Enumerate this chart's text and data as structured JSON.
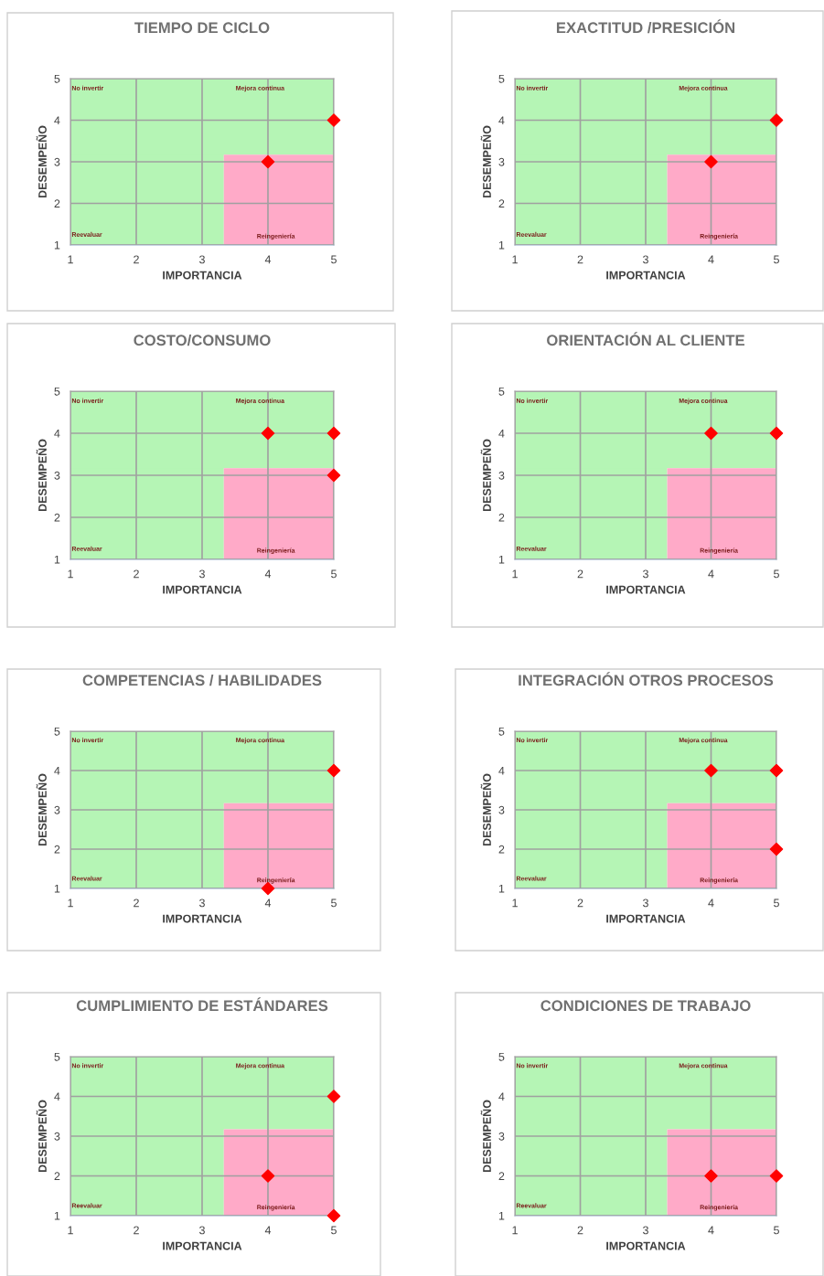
{
  "chart_data": [
    {
      "type": "scatter",
      "title": "TIEMPO DE CICLO",
      "xlabel": "IMPORTANCIA",
      "ylabel": "DESEMPEÑO",
      "xlim": [
        1,
        5
      ],
      "ylim": [
        1,
        5
      ],
      "xticks": [
        1,
        2,
        3,
        4,
        5
      ],
      "yticks": [
        1,
        2,
        3,
        4,
        5
      ],
      "grid": true,
      "bands": [
        {
          "axis": "x",
          "from": 1,
          "to": 3.33,
          "color": "#b5f5b5"
        },
        {
          "axis": "y",
          "from": 3.17,
          "to": 5,
          "color": "#b5f5b5"
        }
      ],
      "annotations": [
        "No invertir",
        "Mejora continua",
        "Reevaluar",
        "Reingeniería"
      ],
      "series": [
        {
          "type": "area",
          "x": [
            3.33,
            5
          ],
          "values": [
            3.17,
            3.17
          ],
          "color": "#ffaac8"
        },
        {
          "marker": "diamond",
          "x": [
            5,
            4
          ],
          "values": [
            4,
            3
          ],
          "color": "#ff0000"
        }
      ]
    },
    {
      "type": "scatter",
      "title": "EXACTITUD /PRESICIÓN",
      "xlabel": "IMPORTANCIA",
      "ylabel": "DESEMPEÑO",
      "xlim": [
        1,
        5
      ],
      "ylim": [
        1,
        5
      ],
      "xticks": [
        1,
        2,
        3,
        4,
        5
      ],
      "yticks": [
        1,
        2,
        3,
        4,
        5
      ],
      "grid": true,
      "bands": [
        {
          "axis": "x",
          "from": 1,
          "to": 3.33,
          "color": "#b5f5b5"
        },
        {
          "axis": "y",
          "from": 3.17,
          "to": 5,
          "color": "#b5f5b5"
        }
      ],
      "annotations": [
        "No invertir",
        "Mejora continua",
        "Reevaluar",
        "Reingeniería"
      ],
      "series": [
        {
          "type": "area",
          "x": [
            3.33,
            5
          ],
          "values": [
            3.17,
            3.17
          ],
          "color": "#ffaac8"
        },
        {
          "marker": "diamond",
          "x": [
            5,
            4
          ],
          "values": [
            4,
            3
          ],
          "color": "#ff0000"
        }
      ]
    },
    {
      "type": "scatter",
      "title": "COSTO/CONSUMO",
      "xlabel": "IMPORTANCIA",
      "ylabel": "DESEMPEÑO",
      "xlim": [
        1,
        5
      ],
      "ylim": [
        1,
        5
      ],
      "xticks": [
        1,
        2,
        3,
        4,
        5
      ],
      "yticks": [
        1,
        2,
        3,
        4,
        5
      ],
      "grid": true,
      "bands": [
        {
          "axis": "x",
          "from": 1,
          "to": 3.33,
          "color": "#b5f5b5"
        },
        {
          "axis": "y",
          "from": 3.17,
          "to": 5,
          "color": "#b5f5b5"
        }
      ],
      "annotations": [
        "No invertir",
        "Mejora continua",
        "Reevaluar",
        "Reingeniería"
      ],
      "series": [
        {
          "type": "area",
          "x": [
            3.33,
            5
          ],
          "values": [
            3.17,
            3.17
          ],
          "color": "#ffaac8"
        },
        {
          "marker": "diamond",
          "x": [
            4,
            5,
            5
          ],
          "values": [
            4,
            4,
            3
          ],
          "color": "#ff0000"
        }
      ]
    },
    {
      "type": "scatter",
      "title": "ORIENTACIÓN AL CLIENTE",
      "xlabel": "IMPORTANCIA",
      "ylabel": "DESEMPEÑO",
      "xlim": [
        1,
        5
      ],
      "ylim": [
        1,
        5
      ],
      "xticks": [
        1,
        2,
        3,
        4,
        5
      ],
      "yticks": [
        1,
        2,
        3,
        4,
        5
      ],
      "grid": true,
      "bands": [
        {
          "axis": "x",
          "from": 1,
          "to": 3.33,
          "color": "#b5f5b5"
        },
        {
          "axis": "y",
          "from": 3.17,
          "to": 5,
          "color": "#b5f5b5"
        }
      ],
      "annotations": [
        "No invertir",
        "Mejora continua",
        "Reevaluar",
        "Reingeniería"
      ],
      "series": [
        {
          "type": "area",
          "x": [
            3.33,
            5
          ],
          "values": [
            3.17,
            3.17
          ],
          "color": "#ffaac8"
        },
        {
          "marker": "diamond",
          "x": [
            4,
            5
          ],
          "values": [
            4,
            4
          ],
          "color": "#ff0000"
        }
      ]
    },
    {
      "type": "scatter",
      "title": "COMPETENCIAS / HABILIDADES",
      "xlabel": "IMPORTANCIA",
      "ylabel": "DESEMPEÑO",
      "xlim": [
        1,
        5
      ],
      "ylim": [
        1,
        5
      ],
      "xticks": [
        1,
        2,
        3,
        4,
        5
      ],
      "yticks": [
        1,
        2,
        3,
        4,
        5
      ],
      "grid": true,
      "bands": [
        {
          "axis": "x",
          "from": 1,
          "to": 3.33,
          "color": "#b5f5b5"
        },
        {
          "axis": "y",
          "from": 3.17,
          "to": 5,
          "color": "#b5f5b5"
        }
      ],
      "annotations": [
        "No invertir",
        "Mejora continua",
        "Reevaluar",
        "Reingeniería"
      ],
      "series": [
        {
          "type": "area",
          "x": [
            3.33,
            5
          ],
          "values": [
            3.17,
            3.17
          ],
          "color": "#ffaac8"
        },
        {
          "marker": "diamond",
          "x": [
            5,
            4
          ],
          "values": [
            4,
            1
          ],
          "color": "#ff0000"
        }
      ]
    },
    {
      "type": "scatter",
      "title": "INTEGRACIÓN OTROS PROCESOS",
      "xlabel": "IMPORTANCIA",
      "ylabel": "DESEMPEÑO",
      "xlim": [
        1,
        5
      ],
      "ylim": [
        1,
        5
      ],
      "xticks": [
        1,
        2,
        3,
        4,
        5
      ],
      "yticks": [
        1,
        2,
        3,
        4,
        5
      ],
      "grid": true,
      "bands": [
        {
          "axis": "x",
          "from": 1,
          "to": 3.33,
          "color": "#b5f5b5"
        },
        {
          "axis": "y",
          "from": 3.17,
          "to": 5,
          "color": "#b5f5b5"
        }
      ],
      "annotations": [
        "No invertir",
        "Mejora continua",
        "Reevaluar",
        "Reingeniería"
      ],
      "series": [
        {
          "type": "area",
          "x": [
            3.33,
            5
          ],
          "values": [
            3.17,
            3.17
          ],
          "color": "#ffaac8"
        },
        {
          "marker": "diamond",
          "x": [
            4,
            5,
            5
          ],
          "values": [
            4,
            4,
            2
          ],
          "color": "#ff0000"
        }
      ]
    },
    {
      "type": "scatter",
      "title": "CUMPLIMIENTO DE ESTÁNDARES",
      "xlabel": "IMPORTANCIA",
      "ylabel": "DESEMPEÑO",
      "xlim": [
        1,
        5
      ],
      "ylim": [
        1,
        5
      ],
      "xticks": [
        1,
        2,
        3,
        4,
        5
      ],
      "yticks": [
        1,
        2,
        3,
        4,
        5
      ],
      "grid": true,
      "bands": [
        {
          "axis": "x",
          "from": 1,
          "to": 3.33,
          "color": "#b5f5b5"
        },
        {
          "axis": "y",
          "from": 3.17,
          "to": 5,
          "color": "#b5f5b5"
        }
      ],
      "annotations": [
        "No invertir",
        "Mejora continua",
        "Reevaluar",
        "Reingeniería"
      ],
      "series": [
        {
          "type": "area",
          "x": [
            3.33,
            5
          ],
          "values": [
            3.17,
            3.17
          ],
          "color": "#ffaac8"
        },
        {
          "marker": "diamond",
          "x": [
            5,
            4,
            5
          ],
          "values": [
            4,
            2,
            1
          ],
          "color": "#ff0000"
        }
      ]
    },
    {
      "type": "scatter",
      "title": "CONDICIONES DE TRABAJO",
      "xlabel": "IMPORTANCIA",
      "ylabel": "DESEMPEÑO",
      "xlim": [
        1,
        5
      ],
      "ylim": [
        1,
        5
      ],
      "xticks": [
        1,
        2,
        3,
        4,
        5
      ],
      "yticks": [
        1,
        2,
        3,
        4,
        5
      ],
      "grid": true,
      "bands": [
        {
          "axis": "x",
          "from": 1,
          "to": 3.33,
          "color": "#b5f5b5"
        },
        {
          "axis": "y",
          "from": 3.17,
          "to": 5,
          "color": "#b5f5b5"
        }
      ],
      "annotations": [
        "No invertir",
        "Mejora continua",
        "Reevaluar",
        "Reingeniería"
      ],
      "series": [
        {
          "type": "area",
          "x": [
            3.33,
            5
          ],
          "values": [
            3.17,
            3.17
          ],
          "color": "#ffaac8"
        },
        {
          "marker": "diamond",
          "x": [
            4,
            5
          ],
          "values": [
            2,
            2
          ],
          "color": "#ff0000"
        }
      ]
    }
  ]
}
